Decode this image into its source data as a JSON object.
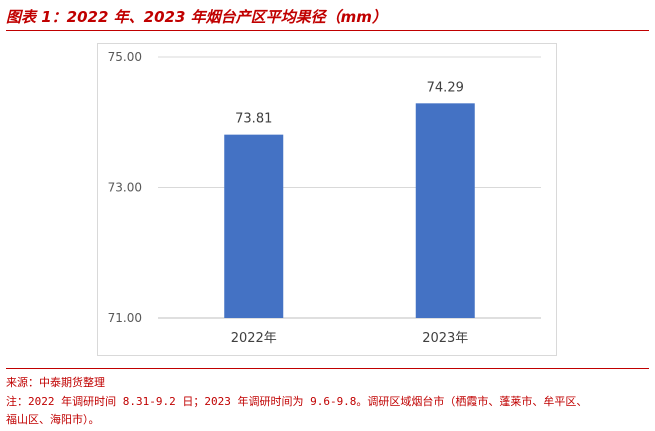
{
  "header": {
    "title": "图表 1：2022 年、2023 年烟台产区平均果径（mm）"
  },
  "chart_data": {
    "type": "bar",
    "categories": [
      "2022年",
      "2023年"
    ],
    "values": [
      73.81,
      74.29
    ],
    "value_labels": [
      "73.81",
      "74.29"
    ],
    "ylim": [
      71,
      75
    ],
    "yticks": [
      "71.00",
      "73.00",
      "75.00"
    ],
    "grid": true,
    "bar_color": "#4472c4",
    "xlabel": "",
    "ylabel": ""
  },
  "footer": {
    "source": "来源：中泰期货整理",
    "note_line1": "注：2022 年调研时间 8.31-9.2 日；2023 年调研时间为 9.6-9.8。调研区域烟台市（栖霞市、蓬莱市、牟平区、",
    "note_line2": "福山区、海阳市）。"
  }
}
